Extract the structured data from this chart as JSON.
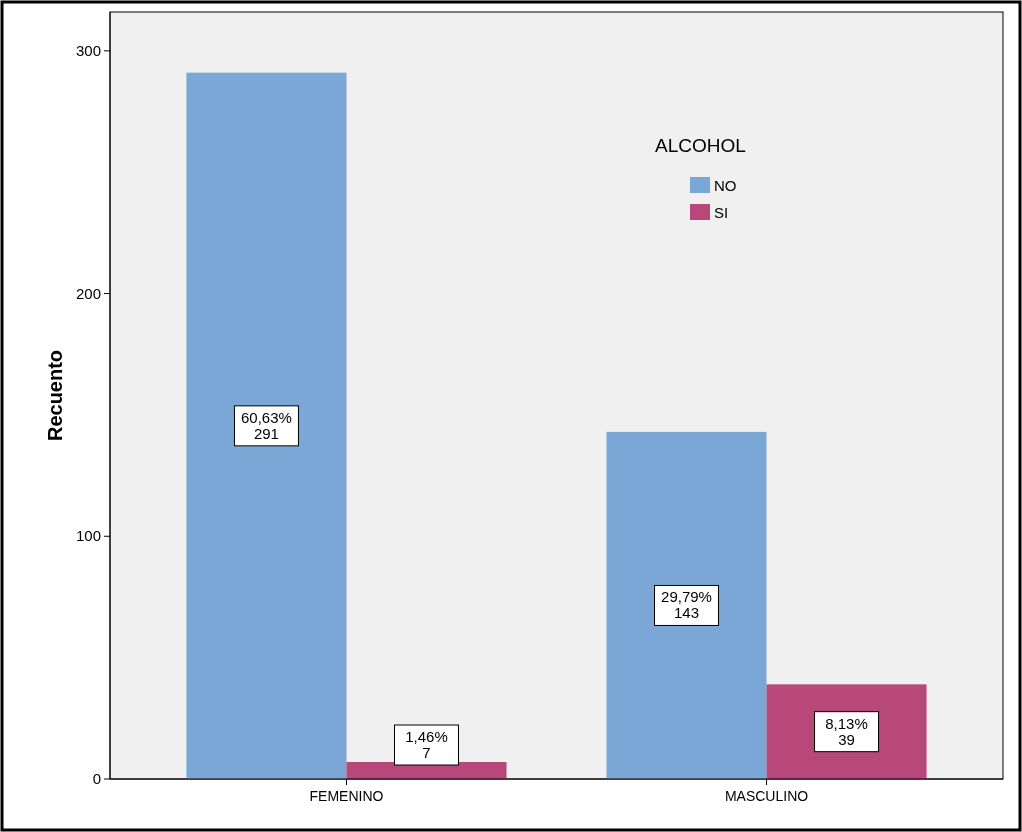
{
  "chart_data": {
    "type": "bar",
    "ylabel": "Recuento",
    "legend_title": "ALCOHOL",
    "categories": [
      "FEMENINO",
      "MASCULINO"
    ],
    "series": [
      {
        "name": "NO",
        "color": "#7ba7d6",
        "values": [
          291,
          143
        ],
        "value_labels": [
          "60,63%\n291",
          "29,79%\n143"
        ]
      },
      {
        "name": "SI",
        "color": "#b8477a",
        "values": [
          7,
          39
        ],
        "value_labels": [
          "1,46%\n7",
          "8,13%\n39"
        ]
      }
    ],
    "ylim": [
      0,
      316
    ],
    "yticks": [
      0,
      100,
      200,
      300
    ],
    "grid": false,
    "legend": "top right"
  }
}
